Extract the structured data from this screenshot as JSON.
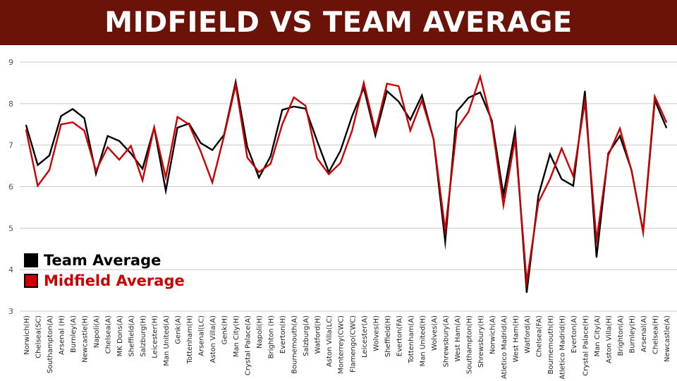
{
  "title": "MIDFIELD VS TEAM AVERAGE",
  "colors": {
    "team": "#000000",
    "midfield": "#cc0000",
    "banner": "#6b1209",
    "grid": "#c8c8c8"
  },
  "legend": [
    {
      "label": "Team Average",
      "color": "#000000"
    },
    {
      "label": "Midfield Average",
      "color": "#cc0000"
    }
  ],
  "chart_data": {
    "type": "line",
    "title": "MIDFIELD VS TEAM AVERAGE",
    "ylim": [
      3,
      9
    ],
    "yticks": [
      3,
      4,
      5,
      6,
      7,
      8,
      9
    ],
    "grid": true,
    "legend_position": "bottom-left",
    "categories": [
      "Norwich(H)",
      "Chelsea(SC)",
      "Southampton(A)",
      "Arsenal (H)",
      "Burnley(A)",
      "Newcastle(H)",
      "Napoli(A)",
      "Chelsea(A)",
      "MK Dons(A)",
      "Sheffield(A)",
      "Salzburg(H)",
      "Leicester(H)",
      "Man United(A)",
      "Genk(A)",
      "Tottenham(H)",
      "Arsenal(LC)",
      "Aston Villa(A)",
      "Genk(H)",
      "Man City(H)",
      "Crystal Palace(A)",
      "Napoli(H)",
      "Brighton (H)",
      "Everton(H)",
      "Bournemouth(A)",
      "Salzburg(A)",
      "Watford(H)",
      "Aston Villa(LC)",
      "Monterrey(CWC)",
      "Flamengo(CWC)",
      "Leicester(A)",
      "Wolves(H)",
      "Sheffield(H)",
      "Everton(FA)",
      "Tottenham(A)",
      "Man United(H)",
      "Wolves(A)",
      "Shrewsbury(A)",
      "West Ham(A)",
      "Southampton(H)",
      "Shrewsbury(H)",
      "Norwich(A)",
      "Atletico Madrid(A)",
      "West Ham(H)",
      "Watford(A)",
      "Chelsea(FA)",
      "Bournemouth(H)",
      "Atletico Madrid(H)",
      "Everton(A)",
      "Crystal Palace(H)",
      "Man City(A)",
      "Aston Villa(H)",
      "Brighton(A)",
      "Burnley(H)",
      "Arsenal(A)",
      "Chelsea(H)",
      "Newcastle(A)"
    ],
    "series": [
      {
        "name": "Team Average",
        "color": "#000000",
        "values": [
          7.48,
          6.52,
          6.75,
          7.7,
          7.87,
          7.65,
          6.31,
          7.22,
          7.1,
          6.8,
          6.43,
          7.42,
          5.9,
          7.42,
          7.52,
          7.05,
          6.88,
          7.25,
          8.52,
          6.95,
          6.22,
          6.73,
          7.85,
          7.93,
          7.88,
          7.1,
          6.35,
          6.86,
          7.7,
          8.38,
          7.23,
          8.3,
          8.05,
          7.61,
          8.2,
          7.14,
          4.67,
          7.81,
          8.14,
          8.27,
          7.6,
          5.8,
          7.35,
          3.45,
          5.78,
          6.78,
          6.18,
          6.02,
          8.3,
          4.3,
          6.8,
          7.22,
          6.4,
          4.9,
          8.08,
          7.42
        ]
      },
      {
        "name": "Midfield Average",
        "color": "#cc0000",
        "values": [
          7.37,
          6.02,
          6.4,
          7.5,
          7.55,
          7.35,
          6.38,
          6.95,
          6.65,
          6.98,
          6.15,
          7.43,
          6.22,
          7.68,
          7.5,
          6.85,
          6.1,
          7.22,
          8.45,
          6.7,
          6.35,
          6.55,
          7.5,
          8.15,
          7.95,
          6.68,
          6.3,
          6.57,
          7.35,
          8.5,
          7.32,
          8.48,
          8.42,
          7.35,
          8.08,
          7.15,
          4.95,
          7.4,
          7.8,
          8.65,
          7.52,
          5.55,
          7.15,
          3.7,
          5.62,
          6.18,
          6.92,
          6.25,
          8.05,
          4.7,
          6.75,
          7.4,
          6.38,
          4.92,
          8.17,
          7.55
        ]
      }
    ]
  }
}
